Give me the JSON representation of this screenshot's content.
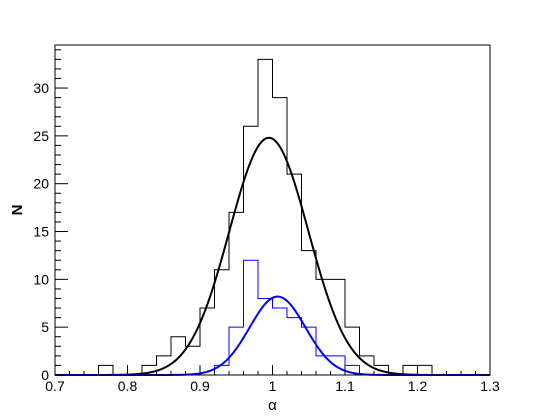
{
  "chart_data": {
    "type": "histogram",
    "title": "",
    "xlabel": "α",
    "ylabel": "N",
    "xlim": [
      0.7,
      1.3
    ],
    "ylim": [
      0,
      34.5
    ],
    "bin_width": 0.02,
    "x_major_ticks": [
      0.7,
      0.8,
      0.9,
      1.0,
      1.1,
      1.2,
      1.3
    ],
    "x_tick_labels": [
      "0.7",
      "0.8",
      "0.9",
      "1",
      "1.1",
      "1.2",
      "1.3"
    ],
    "y_major_ticks": [
      0,
      5,
      10,
      15,
      20,
      25,
      30
    ],
    "y_tick_labels": [
      "0",
      "5",
      "10",
      "15",
      "20",
      "25",
      "30"
    ],
    "grid": false,
    "legend": "none",
    "series": [
      {
        "kind": "histogram",
        "color": "#000000",
        "bin_edges_start": 0.76,
        "counts": [
          1,
          0,
          0,
          1,
          2,
          4,
          3,
          7,
          11,
          17,
          26,
          33,
          29,
          21,
          13,
          10,
          10,
          5,
          2,
          1,
          0,
          1,
          1
        ]
      },
      {
        "kind": "histogram",
        "color": "#0000ff",
        "bin_edges_start": 0.88,
        "counts": [
          0,
          0,
          1,
          5,
          12,
          8,
          7,
          6,
          5,
          2,
          2,
          1,
          0
        ]
      },
      {
        "kind": "gaussian_fit",
        "color": "#000000",
        "amplitude": 24.8,
        "mean": 0.995,
        "sigma": 0.0545
      },
      {
        "kind": "gaussian_fit",
        "color": "#0000ff",
        "amplitude": 8.2,
        "mean": 1.007,
        "sigma": 0.0385
      }
    ]
  }
}
